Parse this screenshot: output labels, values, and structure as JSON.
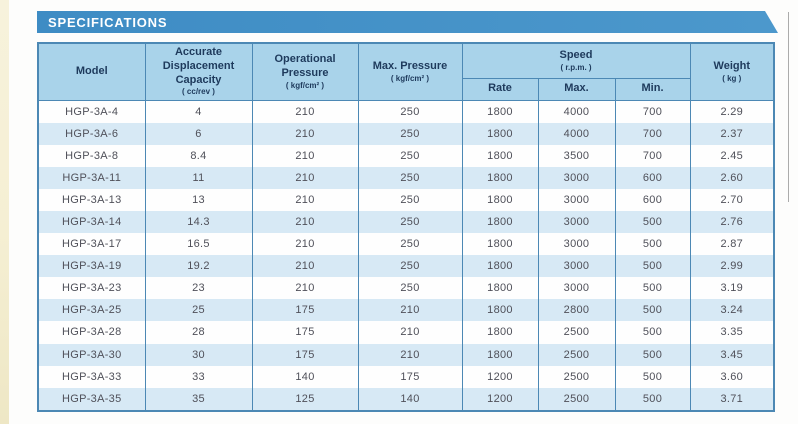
{
  "header": {
    "title": "SPECIFICATIONS"
  },
  "colors": {
    "banner_blue": "#3e8cc4",
    "banner_blue_light": "#4c98cc",
    "header_cell_bg": "#a9d3ea",
    "row_alt_bg": "#d7e9f5",
    "table_border": "#4c88b4",
    "header_text": "#1e3a5c",
    "data_text": "#4f5059",
    "page_edge": "#f5efd3"
  },
  "table": {
    "columns": [
      {
        "label": "Model",
        "unit": ""
      },
      {
        "label": "Accurate Displacement Capacity",
        "unit": "( cc/rev )"
      },
      {
        "label": "Operational Pressure",
        "unit": "( kgf/cm² )"
      },
      {
        "label": "Max. Pressure",
        "unit": "( kgf/cm² )"
      },
      {
        "label": "Speed",
        "unit": "( r.p.m. )",
        "subcolumns": [
          "Rate",
          "Max.",
          "Min."
        ]
      },
      {
        "label": "Weight",
        "unit": "( kg )"
      }
    ],
    "rows": [
      [
        "HGP-3A-4",
        "4",
        "210",
        "250",
        "1800",
        "4000",
        "700",
        "2.29"
      ],
      [
        "HGP-3A-6",
        "6",
        "210",
        "250",
        "1800",
        "4000",
        "700",
        "2.37"
      ],
      [
        "HGP-3A-8",
        "8.4",
        "210",
        "250",
        "1800",
        "3500",
        "700",
        "2.45"
      ],
      [
        "HGP-3A-11",
        "11",
        "210",
        "250",
        "1800",
        "3000",
        "600",
        "2.60"
      ],
      [
        "HGP-3A-13",
        "13",
        "210",
        "250",
        "1800",
        "3000",
        "600",
        "2.70"
      ],
      [
        "HGP-3A-14",
        "14.3",
        "210",
        "250",
        "1800",
        "3000",
        "500",
        "2.76"
      ],
      [
        "HGP-3A-17",
        "16.5",
        "210",
        "250",
        "1800",
        "3000",
        "500",
        "2.87"
      ],
      [
        "HGP-3A-19",
        "19.2",
        "210",
        "250",
        "1800",
        "3000",
        "500",
        "2.99"
      ],
      [
        "HGP-3A-23",
        "23",
        "210",
        "250",
        "1800",
        "3000",
        "500",
        "3.19"
      ],
      [
        "HGP-3A-25",
        "25",
        "175",
        "210",
        "1800",
        "2800",
        "500",
        "3.24"
      ],
      [
        "HGP-3A-28",
        "28",
        "175",
        "210",
        "1800",
        "2500",
        "500",
        "3.35"
      ],
      [
        "HGP-3A-30",
        "30",
        "175",
        "210",
        "1800",
        "2500",
        "500",
        "3.45"
      ],
      [
        "HGP-3A-33",
        "33",
        "140",
        "175",
        "1200",
        "2500",
        "500",
        "3.60"
      ],
      [
        "HGP-3A-35",
        "35",
        "125",
        "140",
        "1200",
        "2500",
        "500",
        "3.71"
      ]
    ]
  }
}
